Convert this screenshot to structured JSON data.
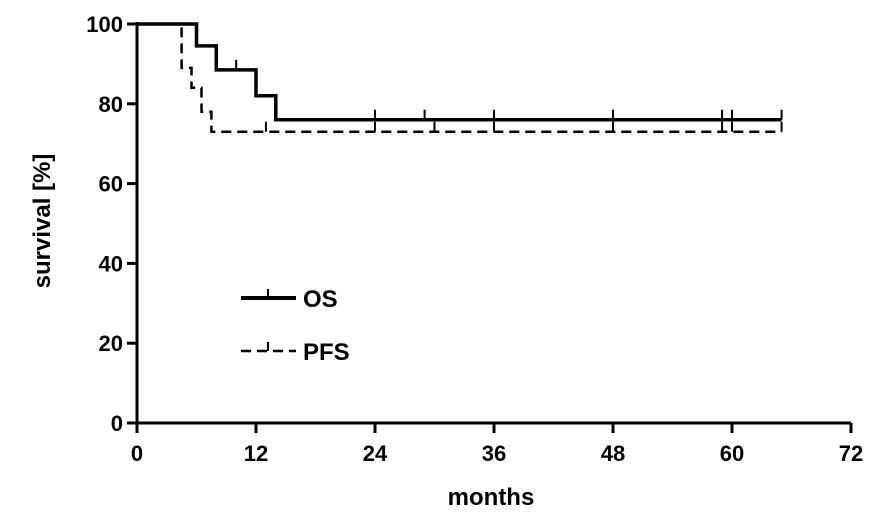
{
  "chart_data": {
    "type": "line",
    "title": "",
    "xlabel": "months",
    "ylabel": "survival [%]",
    "xlim": [
      0,
      72
    ],
    "ylim": [
      0,
      100
    ],
    "xticks": [
      0,
      12,
      24,
      36,
      48,
      60,
      72
    ],
    "yticks": [
      0,
      20,
      40,
      60,
      80,
      100
    ],
    "grid": false,
    "legend_position": "middle-left",
    "step": true,
    "series": [
      {
        "name": "OS",
        "style": "solid",
        "color": "#000000",
        "points": [
          [
            0,
            100
          ],
          [
            6,
            100
          ],
          [
            6,
            94.5
          ],
          [
            8,
            94.5
          ],
          [
            8,
            88.5
          ],
          [
            12,
            88.5
          ],
          [
            12,
            82
          ],
          [
            14,
            82
          ],
          [
            14,
            76
          ],
          [
            65,
            76
          ]
        ],
        "censored": [
          [
            10,
            88.5
          ],
          [
            24,
            76
          ],
          [
            29,
            76
          ],
          [
            36,
            76
          ],
          [
            48,
            76
          ],
          [
            59,
            76
          ],
          [
            60,
            76
          ],
          [
            65,
            76
          ]
        ]
      },
      {
        "name": "PFS",
        "style": "dashed",
        "color": "#000000",
        "points": [
          [
            0,
            100
          ],
          [
            4.5,
            100
          ],
          [
            4.5,
            89
          ],
          [
            5.5,
            89
          ],
          [
            5.5,
            84
          ],
          [
            6.5,
            84
          ],
          [
            6.5,
            78
          ],
          [
            7.5,
            78
          ],
          [
            7.5,
            73
          ],
          [
            65,
            73
          ]
        ],
        "censored": [
          [
            13,
            73
          ],
          [
            24,
            73
          ],
          [
            30,
            73
          ],
          [
            36,
            73
          ],
          [
            48,
            73
          ],
          [
            59,
            73
          ],
          [
            60,
            73
          ],
          [
            65,
            73
          ]
        ]
      }
    ]
  }
}
